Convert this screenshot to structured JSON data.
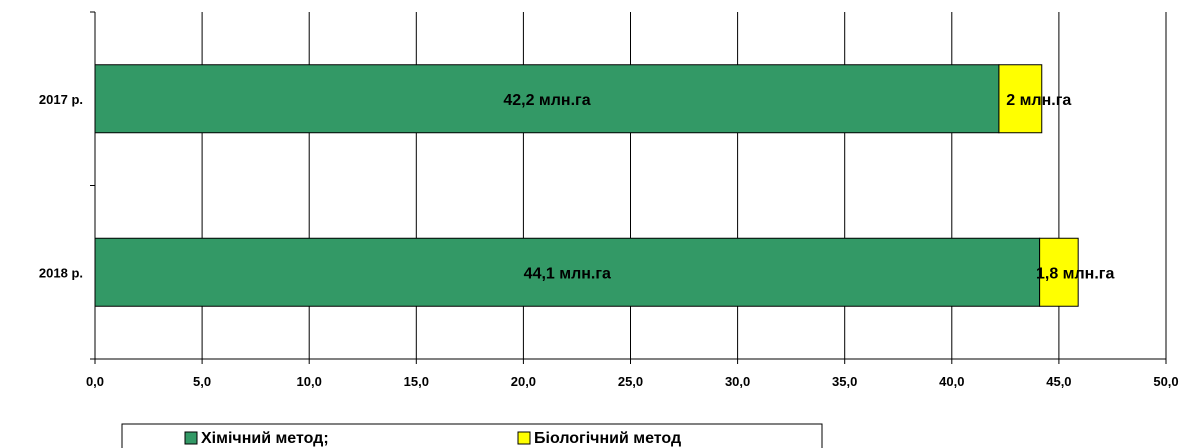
{
  "chart_data": {
    "type": "bar",
    "orientation": "horizontal",
    "stacked": true,
    "categories": [
      "2017 р.",
      "2018 р."
    ],
    "series": [
      {
        "name": "Хімічний метод;",
        "values": [
          42.2,
          44.1
        ],
        "labels": [
          "42,2 млн.га",
          "44,1 млн.га"
        ],
        "color": "#339966"
      },
      {
        "name": "Біологічний метод",
        "values": [
          2,
          1.8
        ],
        "labels": [
          "2 млн.га",
          "1,8 млн.га"
        ],
        "color": "#ffff00"
      }
    ],
    "xlim": [
      0,
      50
    ],
    "xticks": [
      "0,0",
      "5,0",
      "10,0",
      "15,0",
      "20,0",
      "25,0",
      "30,0",
      "35,0",
      "40,0",
      "45,0",
      "50,0"
    ],
    "grid": true,
    "legend_position": "bottom"
  }
}
